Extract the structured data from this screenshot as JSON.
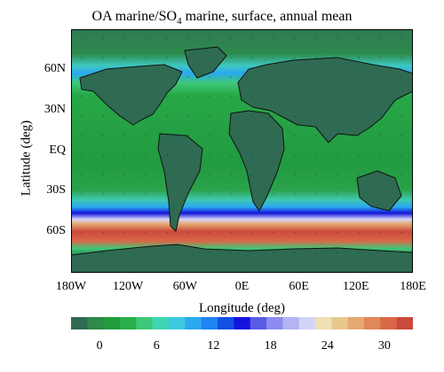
{
  "chart_data": {
    "type": "heatmap",
    "title_main": "OA marine/SO",
    "title_sub": "4",
    "title_rest": " marine, surface, annual mean",
    "xlabel": "Longitude (deg)",
    "ylabel": "Latitude (deg)",
    "xlim": [
      -180,
      180
    ],
    "ylim": [
      -90,
      90
    ],
    "x_ticks": [
      {
        "value": -180,
        "label": "180W"
      },
      {
        "value": -120,
        "label": "120W"
      },
      {
        "value": -60,
        "label": "60W"
      },
      {
        "value": 0,
        "label": "0E"
      },
      {
        "value": 60,
        "label": "60E"
      },
      {
        "value": 120,
        "label": "120E"
      },
      {
        "value": 180,
        "label": "180E"
      }
    ],
    "y_ticks": [
      {
        "value": 60,
        "label": "60N"
      },
      {
        "value": 30,
        "label": "30N"
      },
      {
        "value": 0,
        "label": "EQ"
      },
      {
        "value": -30,
        "label": "30S"
      },
      {
        "value": -60,
        "label": "60S"
      }
    ],
    "colorbar": {
      "range": [
        -3,
        33
      ],
      "ticks": [
        0,
        6,
        12,
        18,
        24,
        30
      ],
      "colors": [
        "#2e6b52",
        "#2d8a4a",
        "#219c3d",
        "#27b04a",
        "#3ec879",
        "#3fd4b2",
        "#3cc9e0",
        "#2aa8f0",
        "#1e84f2",
        "#1450e6",
        "#1414dc",
        "#5a5ae8",
        "#8c8cf0",
        "#b4b4f5",
        "#d4d4f8",
        "#f0e0b4",
        "#e8c88c",
        "#e4a870",
        "#e08858",
        "#d86848",
        "#cc4a3c"
      ]
    },
    "latitude_profile": [
      {
        "lat": 90,
        "value": 1
      },
      {
        "lat": 75,
        "value": 3
      },
      {
        "lat": 60,
        "value": 11
      },
      {
        "lat": 50,
        "value": 6
      },
      {
        "lat": 40,
        "value": 3
      },
      {
        "lat": 20,
        "value": 2
      },
      {
        "lat": 0,
        "value": 2
      },
      {
        "lat": -30,
        "value": 3
      },
      {
        "lat": -42,
        "value": 8
      },
      {
        "lat": -48,
        "value": 15
      },
      {
        "lat": -52,
        "value": 20
      },
      {
        "lat": -57,
        "value": 26
      },
      {
        "lat": -62,
        "value": 30
      },
      {
        "lat": -68,
        "value": 27
      },
      {
        "lat": -75,
        "value": 3
      },
      {
        "lat": -90,
        "value": 1
      }
    ]
  }
}
